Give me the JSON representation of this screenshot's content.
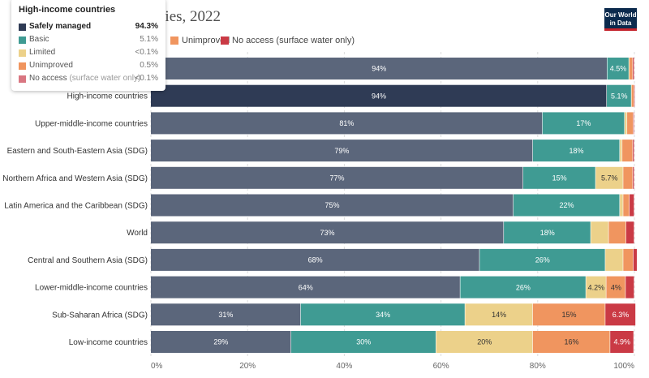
{
  "header": {
    "title_visible": "ing drinking water facilities, 2022",
    "logo_line1": "Our World",
    "logo_line2": "in Data"
  },
  "legend": [
    {
      "label": "Unimproved",
      "color": "#f0955f"
    },
    {
      "label": "No access (surface water only)",
      "color": "#ca3a45"
    }
  ],
  "tooltip": {
    "title": "High-income countries",
    "rows": [
      {
        "name": "Safely managed",
        "value": "94.3%",
        "color": "#2f3b55",
        "emphasis": true
      },
      {
        "name": "Basic",
        "value": "5.1%",
        "color": "#3f9b93"
      },
      {
        "name": "Limited",
        "value": "<0.1%",
        "color": "#ecd18a"
      },
      {
        "name": "Unimproved",
        "value": "0.5%",
        "color": "#f0955f"
      },
      {
        "name": "No access",
        "name_suffix": "(surface water only)",
        "value": "<0.1%",
        "color": "#d97681"
      }
    ]
  },
  "chart_data": {
    "type": "bar",
    "orientation": "horizontal",
    "stacked": true,
    "title": "",
    "xlabel": "",
    "ylabel": "",
    "xlim": [
      0,
      100
    ],
    "x_ticks": [
      "0%",
      "20%",
      "40%",
      "60%",
      "80%",
      "100%"
    ],
    "categories": [
      "",
      "High-income countries",
      "Upper-middle-income countries",
      "Eastern and South-Eastern Asia (SDG)",
      "Northern Africa and Western Asia (SDG)",
      "Latin America and the Caribbean (SDG)",
      "World",
      "Central and Southern Asia (SDG)",
      "Lower-middle-income countries",
      "Sub-Saharan Africa (SDG)",
      "Low-income countries"
    ],
    "series": [
      {
        "name": "Safely managed",
        "color": "#5b667b",
        "values": [
          94.4,
          94.3,
          81,
          79,
          77,
          75,
          73,
          68,
          64,
          31,
          29
        ],
        "labels": [
          "94%",
          "94%",
          "81%",
          "79%",
          "77%",
          "75%",
          "73%",
          "68%",
          "64%",
          "31%",
          "29%"
        ]
      },
      {
        "name": "Basic",
        "color": "#3f9b93",
        "values": [
          4.5,
          5.1,
          17,
          18,
          15,
          22,
          18,
          26,
          26,
          34,
          30
        ],
        "labels": [
          "4.5%",
          "5.1%",
          "17%",
          "18%",
          "15%",
          "22%",
          "18%",
          "26%",
          "26%",
          "34%",
          "30%"
        ]
      },
      {
        "name": "Limited",
        "color": "#ecd18a",
        "values": [
          0.1,
          0.05,
          0.5,
          0.5,
          5.7,
          0.7,
          3.7,
          3.7,
          4.2,
          14,
          20
        ],
        "labels": [
          "",
          "",
          "",
          "",
          "5.7%",
          "",
          "",
          "",
          "4.2%",
          "14%",
          "20%"
        ]
      },
      {
        "name": "Unimproved",
        "color": "#f0955f",
        "values": [
          0.7,
          0.5,
          1.3,
          2.2,
          2.0,
          1.3,
          3.6,
          2.1,
          4.0,
          15,
          16
        ],
        "labels": [
          "",
          "",
          "",
          "",
          "",
          "",
          "",
          "",
          "4%",
          "15%",
          "16%"
        ]
      },
      {
        "name": "No access (surface water only)",
        "color": "#ca3a45",
        "values": [
          0.3,
          0.05,
          0.2,
          0.3,
          0.3,
          1.0,
          1.7,
          0.8,
          1.8,
          6.3,
          4.9
        ],
        "labels": [
          "",
          "",
          "",
          "",
          "",
          "",
          "",
          "",
          "",
          "6.3%",
          "4.9%"
        ]
      }
    ],
    "highlighted_category": "High-income countries",
    "highlight_colors": [
      "#2f3b55",
      "#3f9b93",
      "#ecd18a",
      "#f0955f",
      "#ca3a45"
    ],
    "label_colors": [
      "#ffffff",
      "#ffffff",
      "#333333",
      "#333333",
      "#ffffff"
    ]
  }
}
